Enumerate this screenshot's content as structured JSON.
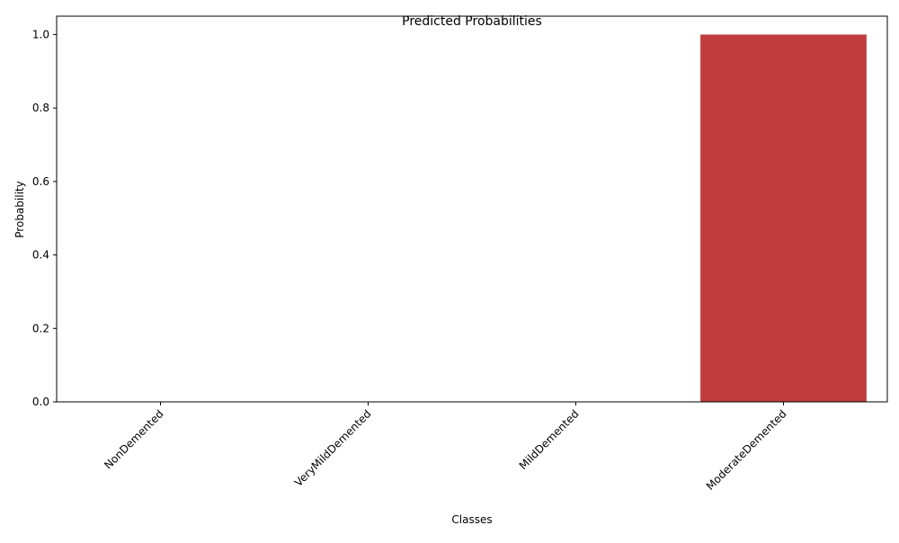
{
  "chart_data": {
    "type": "bar",
    "title": "Predicted Probabilities",
    "xlabel": "Classes",
    "ylabel": "Probability",
    "categories": [
      "NonDemented",
      "VeryMildDemented",
      "MildDemented",
      "ModerateDemented"
    ],
    "values": [
      0.0,
      0.0,
      0.0,
      1.0
    ],
    "colors": [
      "#3a75af",
      "#e1812c",
      "#3a923a",
      "#c03d3e"
    ],
    "ylim": [
      0,
      1.05
    ],
    "yticks": [
      0.0,
      0.2,
      0.4,
      0.6,
      0.8,
      1.0
    ],
    "ytick_labels": [
      "0.0",
      "0.2",
      "0.4",
      "0.6",
      "0.8",
      "1.0"
    ],
    "xtick_rotation_deg": 45,
    "grid": false,
    "legend": "none"
  }
}
